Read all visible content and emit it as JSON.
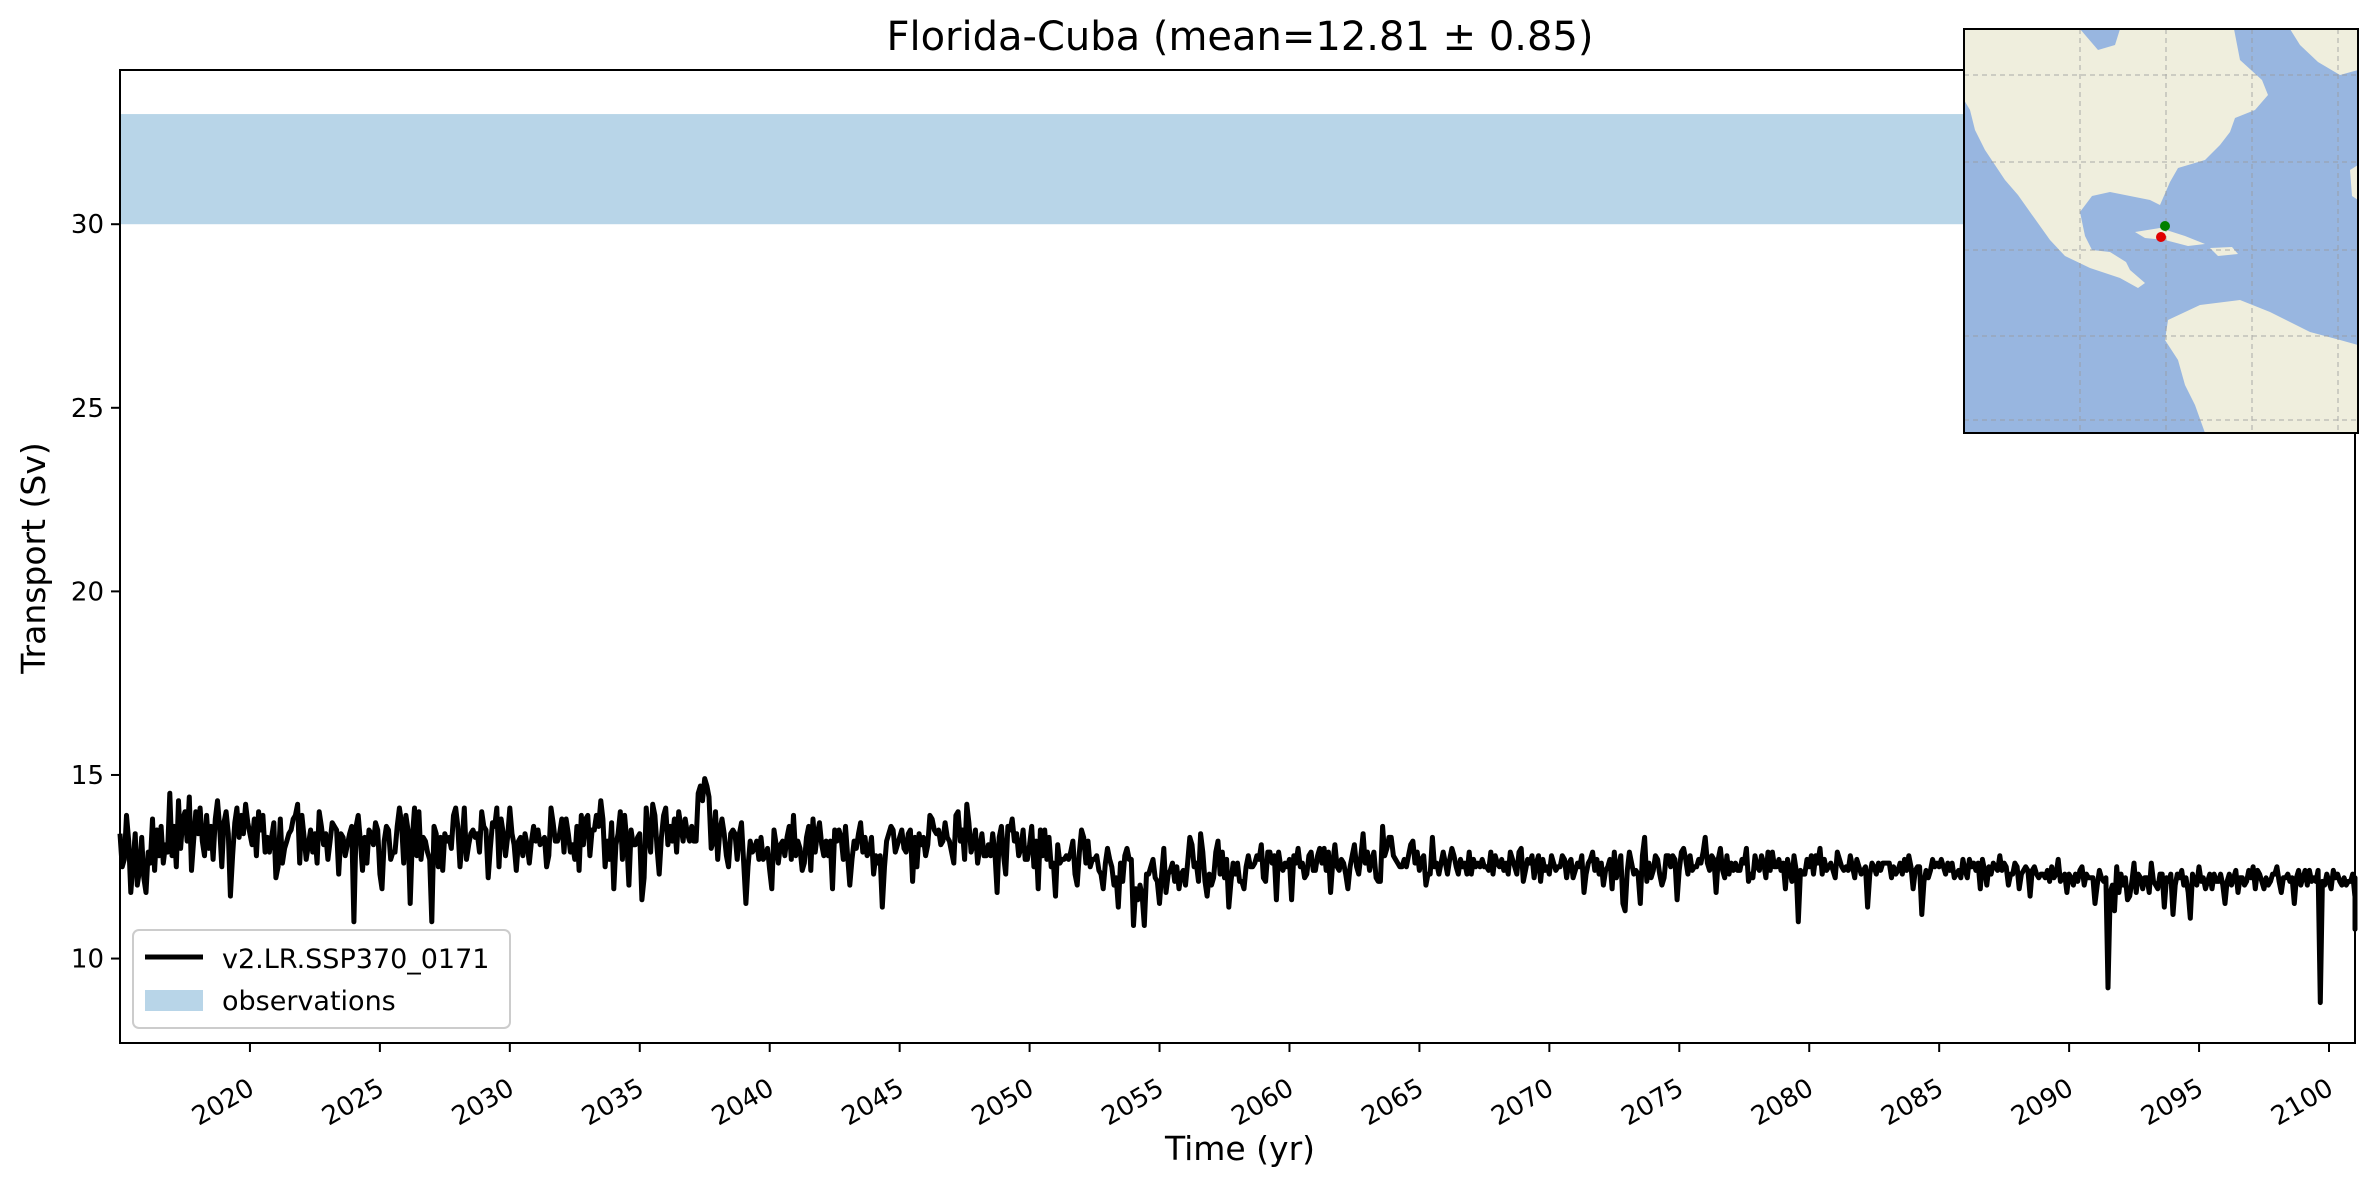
{
  "chart_data": {
    "type": "line",
    "title": "Florida-Cuba (mean=12.81 ± 0.85)",
    "xlabel": "Time (yr)",
    "ylabel": "Transport (Sv)",
    "xlim": [
      2015.0,
      2101.0
    ],
    "ylim": [
      7.7,
      34.2
    ],
    "x_ticks": [
      2020,
      2025,
      2030,
      2035,
      2040,
      2045,
      2050,
      2055,
      2060,
      2065,
      2070,
      2075,
      2080,
      2085,
      2090,
      2095,
      2100
    ],
    "y_ticks": [
      10,
      15,
      20,
      25,
      30
    ],
    "grid": false,
    "legend_position": "lower-left",
    "observations_band": {
      "name": "observations",
      "y_range": [
        30.0,
        33.0
      ],
      "color": "#b8d5e8"
    },
    "series": [
      {
        "name": "v2.LR.SSP370_0171",
        "color": "#000000",
        "x_start": 2015.0,
        "x_step": 0.08333,
        "values": [
          13.4,
          12.5,
          12.7,
          13.9,
          13.2,
          11.8,
          12.6,
          13.4,
          12.0,
          12.4,
          13.3,
          12.2,
          11.8,
          12.9,
          12.6,
          13.8,
          12.4,
          13.5,
          12.8,
          13.6,
          12.6,
          13.1,
          12.9,
          14.5,
          12.8,
          13.6,
          12.5,
          14.3,
          13.0,
          13.8,
          14.0,
          13.2,
          14.4,
          12.4,
          13.2,
          14.0,
          13.4,
          14.1,
          13.2,
          12.8,
          13.9,
          13.0,
          13.6,
          12.7,
          13.8,
          14.3,
          13.6,
          12.5,
          13.7,
          14.0,
          13.4,
          11.7,
          12.8,
          13.7,
          14.1,
          13.3,
          13.9,
          13.4,
          14.2,
          13.7,
          13.4,
          13.1,
          13.8,
          12.8,
          14.0,
          13.5,
          13.9,
          12.9,
          13.3,
          12.9,
          13.3,
          13.7,
          12.2,
          12.5,
          13.8,
          12.6,
          13.0,
          13.2,
          13.4,
          13.5,
          13.8,
          13.9,
          14.2,
          12.6,
          13.9,
          13.3,
          12.7,
          13.1,
          13.5,
          12.9,
          13.4,
          12.6,
          14.0,
          13.6,
          13.1,
          13.4,
          12.7,
          13.2,
          13.7,
          13.6,
          13.5,
          12.3,
          13.4,
          13.3,
          12.8,
          13.1,
          13.4,
          13.6,
          11.0,
          13.6,
          13.9,
          13.2,
          12.4,
          13.3,
          12.6,
          13.5,
          13.4,
          13.1,
          13.7,
          13.5,
          12.3,
          11.9,
          13.2,
          13.6,
          13.5,
          12.7,
          12.9,
          12.9,
          13.6,
          14.1,
          13.7,
          12.6,
          13.9,
          13.5,
          11.5,
          13.3,
          14.1,
          12.8,
          14.0,
          12.7,
          13.3,
          13.2,
          12.9,
          12.7,
          11.0,
          13.6,
          13.4,
          12.5,
          13.3,
          12.4,
          13.4,
          13.2,
          13.3,
          13.0,
          13.9,
          14.1,
          13.6,
          12.5,
          13.2,
          14.1,
          12.7,
          13.1,
          13.4,
          13.5,
          13.3,
          13.4,
          12.9,
          14.0,
          13.6,
          13.5,
          12.2,
          13.0,
          13.7,
          13.6,
          14.1,
          12.5,
          13.8,
          13.4,
          12.8,
          13.3,
          14.1,
          13.4,
          13.1,
          12.4,
          13.2,
          13.3,
          12.8,
          13.4,
          13.1,
          12.6,
          13.2,
          13.6,
          13.2,
          13.5,
          13.1,
          13.2,
          13.3,
          12.5,
          12.8,
          14.1,
          13.7,
          13.2,
          13.2,
          13.4,
          13.8,
          12.9,
          13.8,
          13.4,
          12.9,
          13.1,
          12.7,
          13.6,
          12.4,
          13.9,
          13.1,
          13.8,
          13.9,
          12.8,
          13.5,
          13.5,
          13.9,
          13.6,
          14.3,
          13.8,
          12.5,
          13.2,
          12.7,
          13.7,
          11.9,
          13.1,
          13.4,
          14.0,
          12.7,
          13.9,
          13.2,
          12.0,
          13.5,
          13.1,
          13.1,
          13.3,
          13.4,
          11.6,
          12.2,
          14.1,
          13.4,
          12.9,
          14.2,
          13.9,
          13.0,
          12.3,
          13.3,
          13.9,
          14.1,
          13.1,
          13.6,
          13.2,
          13.8,
          12.9,
          14.0,
          13.6,
          13.2,
          13.8,
          13.4,
          13.2,
          13.6,
          13.2,
          13.2,
          14.5,
          14.7,
          14.3,
          14.9,
          14.7,
          14.4,
          13.0,
          13.2,
          14.0,
          12.7,
          13.5,
          13.8,
          13.4,
          12.8,
          12.5,
          13.4,
          13.5,
          13.4,
          12.7,
          13.4,
          13.7,
          12.6,
          11.5,
          12.5,
          13.2,
          12.9,
          13.0,
          13.2,
          12.7,
          13.3,
          12.7,
          12.8,
          13.0,
          12.4,
          11.9,
          13.5,
          13.1,
          12.6,
          13.1,
          13.2,
          12.8,
          13.3,
          13.6,
          12.7,
          13.9,
          12.8,
          13.2,
          13.0,
          12.4,
          12.6,
          13.3,
          13.6,
          12.4,
          13.8,
          12.9,
          13.4,
          13.7,
          13.1,
          12.8,
          13.2,
          12.8,
          13.2,
          11.9,
          13.5,
          13.2,
          13.5,
          13.3,
          12.7,
          13.6,
          12.8,
          12.0,
          12.7,
          13.2,
          13.0,
          13.4,
          13.7,
          12.9,
          13.3,
          12.8,
          12.9,
          13.3,
          12.3,
          12.8,
          12.6,
          12.8,
          11.4,
          12.5,
          13.2,
          13.4,
          13.6,
          13.5,
          12.9,
          13.1,
          13.3,
          13.5,
          13.0,
          12.9,
          13.4,
          13.5,
          12.1,
          13.3,
          12.5,
          13.4,
          13.1,
          13.3,
          12.8,
          13.1,
          13.9,
          13.8,
          13.5,
          13.4,
          13.5,
          13.1,
          13.2,
          13.7,
          13.3,
          13.2,
          12.9,
          12.6,
          13.9,
          14.0,
          13.2,
          13.5,
          12.7,
          14.2,
          13.7,
          12.9,
          13.1,
          13.5,
          12.6,
          13.0,
          13.4,
          12.8,
          12.8,
          13.1,
          12.8,
          13.4,
          12.9,
          11.8,
          13.3,
          13.6,
          12.8,
          12.3,
          13.6,
          13.5,
          13.8,
          13.2,
          13.4,
          12.8,
          13.0,
          13.5,
          12.7,
          12.7,
          13.1,
          13.6,
          12.5,
          13.2,
          11.9,
          13.5,
          12.8,
          13.5,
          12.7,
          13.3,
          12.5,
          12.6,
          11.7,
          13.1,
          12.6,
          12.7,
          12.7,
          12.8,
          12.7,
          12.9,
          13.2,
          12.3,
          12.0,
          12.9,
          13.5,
          13.3,
          12.6,
          13.2,
          12.5,
          12.7,
          12.7,
          12.8,
          12.4,
          12.3,
          11.9,
          12.6,
          13.0,
          12.7,
          12.5,
          12.0,
          12.2,
          11.4,
          12.6,
          12.1,
          12.8,
          13.0,
          12.7,
          12.7,
          10.9,
          11.9,
          11.6,
          12.0,
          11.7,
          10.9,
          12.3,
          12.3,
          12.5,
          12.7,
          12.2,
          12.1,
          11.5,
          12.3,
          13.0,
          11.8,
          12.3,
          12.4,
          12.6,
          12.1,
          12.5,
          11.9,
          12.3,
          12.4,
          12.0,
          12.6,
          13.3,
          13.1,
          12.5,
          12.6,
          12.1,
          13.4,
          12.9,
          12.1,
          11.7,
          12.3,
          12.0,
          12.2,
          12.9,
          13.2,
          12.3,
          12.9,
          12.2,
          12.7,
          11.4,
          12.1,
          12.6,
          12.3,
          12.6,
          12.1,
          12.1,
          11.9,
          12.5,
          12.8,
          12.5,
          12.5,
          12.6,
          12.8,
          12.7,
          13.1,
          12.2,
          12.1,
          12.9,
          12.9,
          12.6,
          12.8,
          11.6,
          12.9,
          12.5,
          12.4,
          12.6,
          12.5,
          12.7,
          11.6,
          12.8,
          12.6,
          13.0,
          12.5,
          12.6,
          12.2,
          12.3,
          12.8,
          12.9,
          12.4,
          12.4,
          12.8,
          13.0,
          12.6,
          13.0,
          12.4,
          12.9,
          11.8,
          12.6,
          13.1,
          12.5,
          12.4,
          12.7,
          12.6,
          12.3,
          11.9,
          12.5,
          12.8,
          13.1,
          12.5,
          12.3,
          12.8,
          13.4,
          12.6,
          12.9,
          12.4,
          12.7,
          12.9,
          12.2,
          12.1,
          12.1,
          13.6,
          12.8,
          13.0,
          13.3,
          13.3,
          12.8,
          12.7,
          12.6,
          12.5,
          12.5,
          12.7,
          12.5,
          12.8,
          13.1,
          13.2,
          12.6,
          12.9,
          12.4,
          12.7,
          12.8,
          12.0,
          12.3,
          12.3,
          13.3,
          12.5,
          12.6,
          12.3,
          12.6,
          12.9,
          12.6,
          12.3,
          12.7,
          13.0,
          12.8,
          12.5,
          12.3,
          12.7,
          12.5,
          12.6,
          12.3,
          12.9,
          12.3,
          12.7,
          12.5,
          12.6,
          12.5,
          12.7,
          12.5,
          12.5,
          12.4,
          12.9,
          12.3,
          12.8,
          12.6,
          12.5,
          12.7,
          12.4,
          12.6,
          12.3,
          12.9,
          12.7,
          12.5,
          12.3,
          12.9,
          13.0,
          12.1,
          12.4,
          12.7,
          12.6,
          12.8,
          12.2,
          12.6,
          12.8,
          12.1,
          12.7,
          12.4,
          12.5,
          12.3,
          12.8,
          12.6,
          12.4,
          12.5,
          12.5,
          12.8,
          12.7,
          12.2,
          12.6,
          12.7,
          12.2,
          12.4,
          12.6,
          12.5,
          12.8,
          11.8,
          12.3,
          12.6,
          12.7,
          12.9,
          12.4,
          12.7,
          12.3,
          12.6,
          12.0,
          12.4,
          12.5,
          12.7,
          11.9,
          12.9,
          12.2,
          12.5,
          12.8,
          11.5,
          11.3,
          12.4,
          12.9,
          12.6,
          12.3,
          12.4,
          12.3,
          11.5,
          12.8,
          13.3,
          12.1,
          12.6,
          12.2,
          12.4,
          12.8,
          12.7,
          12.3,
          12.0,
          12.2,
          12.8,
          12.8,
          12.5,
          12.8,
          12.7,
          11.6,
          12.4,
          12.9,
          13.0,
          12.7,
          12.3,
          12.8,
          12.4,
          12.5,
          12.5,
          12.7,
          12.6,
          12.9,
          13.3,
          12.6,
          12.4,
          12.8,
          12.7,
          11.8,
          12.7,
          13.0,
          12.4,
          12.2,
          12.8,
          12.3,
          12.6,
          12.4,
          12.6,
          12.4,
          12.4,
          12.7,
          12.6,
          13.0,
          12.1,
          12.3,
          12.2,
          12.8,
          12.5,
          12.4,
          12.8,
          12.6,
          12.2,
          12.9,
          12.4,
          12.9,
          12.5,
          12.5,
          12.7,
          12.4,
          12.6,
          11.9,
          12.7,
          12.4,
          12.1,
          12.8,
          12.4,
          11.0,
          12.4,
          12.3,
          12.3,
          12.7,
          12.5,
          12.8,
          12.3,
          12.8,
          12.6,
          13.0,
          12.3,
          12.7,
          12.4,
          12.5,
          12.6,
          12.4,
          12.2,
          12.9,
          12.7,
          12.5,
          12.4,
          12.5,
          12.4,
          12.8,
          12.5,
          12.2,
          12.7,
          12.5,
          12.3,
          12.4,
          12.5,
          11.4,
          12.3,
          12.6,
          12.5,
          12.3,
          12.6,
          12.4,
          12.6,
          12.6,
          12.6,
          12.6,
          12.2,
          12.5,
          12.3,
          12.4,
          12.6,
          12.3,
          12.7,
          12.4,
          12.8,
          12.5,
          11.9,
          12.4,
          12.5,
          12.5,
          11.2,
          12.1,
          12.4,
          12.2,
          12.4,
          12.7,
          12.5,
          12.6,
          12.5,
          12.7,
          12.5,
          12.3,
          12.6,
          12.4,
          12.6,
          12.2,
          12.3,
          12.4,
          12.2,
          12.7,
          12.4,
          12.2,
          12.7,
          12.5,
          12.6,
          12.4,
          12.6,
          11.9,
          12.7,
          12.4,
          12.0,
          12.5,
          12.3,
          12.6,
          12.5,
          12.4,
          12.8,
          12.4,
          12.6,
          12.5,
          12.0,
          12.3,
          12.3,
          12.6,
          12.5,
          11.9,
          12.3,
          12.4,
          12.5,
          12.4,
          11.7,
          12.4,
          12.5,
          12.3,
          12.2,
          12.3,
          12.3,
          12.2,
          12.4,
          12.1,
          12.5,
          12.2,
          12.3,
          12.7,
          12.1,
          12.2,
          12.3,
          11.8,
          12.3,
          12.2,
          12.0,
          12.3,
          12.1,
          12.4,
          12.5,
          12.0,
          12.3,
          12.2,
          12.2,
          12.2,
          11.5,
          12.0,
          12.4,
          12.2,
          12.1,
          12.2,
          9.2,
          11.8,
          12.0,
          11.3,
          12.5,
          11.8,
          12.3,
          12.0,
          12.2,
          11.6,
          11.7,
          12.1,
          12.6,
          11.8,
          12.3,
          12.2,
          11.9,
          12.2,
          12.2,
          11.8,
          12.6,
          12.1,
          12.0,
          11.9,
          12.3,
          12.3,
          11.4,
          12.2,
          12.1,
          12.3,
          11.2,
          12.0,
          12.3,
          12.2,
          12.4,
          12.0,
          12.2,
          11.8,
          11.1,
          12.3,
          12.1,
          12.0,
          12.5,
          12.1,
          12.2,
          11.9,
          12.1,
          12.3,
          11.9,
          12.3,
          12.1,
          12.1,
          12.3,
          12.0,
          11.5,
          12.1,
          12.3,
          12.0,
          12.2,
          12.4,
          11.8,
          12.2,
          12.2,
          12.0,
          12.1,
          12.4,
          12.2,
          12.5,
          11.9,
          12.4,
          12.3,
          12.1,
          11.9,
          12.2,
          12.0,
          12.1,
          12.3,
          12.3,
          12.5,
          12.1,
          11.8,
          12.2,
          12.2,
          12.3,
          12.1,
          12.2,
          11.5,
          12.2,
          12.4,
          12.0,
          12.2,
          12.4,
          12.0,
          12.4,
          12.1,
          12.2,
          12.1,
          12.4,
          8.8,
          12.1,
          12.0,
          12.3,
          12.1,
          11.9,
          12.4,
          12.2,
          12.3,
          12.1,
          12.0,
          12.2,
          12.0,
          12.1,
          12.1,
          12.3,
          11.7,
          12.2,
          12.2,
          12.0,
          11.9,
          12.1,
          12.2,
          11.6,
          12.1,
          12.0,
          12.1,
          12.0,
          11.7,
          12.0,
          11.8,
          11.9,
          11.7,
          12.1,
          11.9,
          11.7,
          11.4,
          11.5,
          11.6,
          11.2,
          11.4,
          11.7,
          11.9,
          11.3,
          11.6,
          11.3,
          11.7,
          12.0,
          11.2,
          11.5,
          11.1,
          11.4,
          11.6,
          10.8,
          11.3,
          11.0,
          11.1,
          10.8
        ]
      }
    ],
    "inset_map": {
      "background_ocean": "#98b6e0",
      "land_color": "#efeedd",
      "markers": [
        {
          "color": "#008000"
        },
        {
          "color": "#e00000"
        }
      ]
    }
  }
}
